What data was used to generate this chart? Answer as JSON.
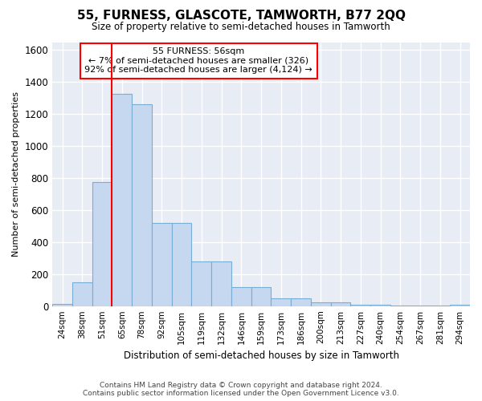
{
  "title": "55, FURNESS, GLASCOTE, TAMWORTH, B77 2QQ",
  "subtitle": "Size of property relative to semi-detached houses in Tamworth",
  "xlabel": "Distribution of semi-detached houses by size in Tamworth",
  "ylabel": "Number of semi-detached properties",
  "categories": [
    "24sqm",
    "38sqm",
    "51sqm",
    "65sqm",
    "78sqm",
    "92sqm",
    "105sqm",
    "119sqm",
    "132sqm",
    "146sqm",
    "159sqm",
    "173sqm",
    "186sqm",
    "200sqm",
    "213sqm",
    "227sqm",
    "240sqm",
    "254sqm",
    "267sqm",
    "281sqm",
    "294sqm"
  ],
  "values": [
    15,
    150,
    775,
    1325,
    1260,
    520,
    520,
    280,
    280,
    120,
    120,
    50,
    50,
    25,
    25,
    8,
    8,
    2,
    2,
    2,
    8
  ],
  "bar_color": "#c5d8f0",
  "bar_edge_color": "#7aadd4",
  "property_line_x": 2.5,
  "annotation_text_line1": "55 FURNESS: 56sqm",
  "annotation_text_line2": "← 7% of semi-detached houses are smaller (326)",
  "annotation_text_line3": "92% of semi-detached houses are larger (4,124) →",
  "ylim": [
    0,
    1650
  ],
  "yticks": [
    0,
    200,
    400,
    600,
    800,
    1000,
    1200,
    1400,
    1600
  ],
  "footer_line1": "Contains HM Land Registry data © Crown copyright and database right 2024.",
  "footer_line2": "Contains public sector information licensed under the Open Government Licence v3.0.",
  "bg_color": "#ffffff",
  "plot_bg_color": "#e8ecf5"
}
